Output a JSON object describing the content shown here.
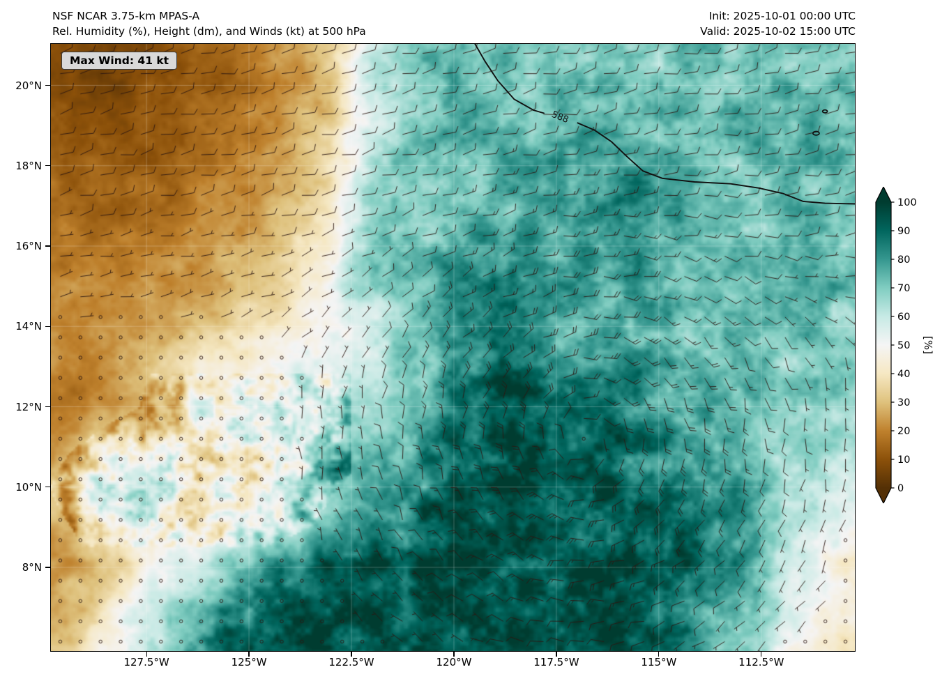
{
  "header": {
    "model": "NSF NCAR 3.75-km MPAS-A",
    "product": "Rel. Humidity (%), Height (dm), and Winds (kt) at 500 hPa",
    "init": "Init: 2025-10-01 00:00 UTC",
    "valid": "Valid: 2025-10-02 15:00 UTC"
  },
  "map": {
    "max_wind_badge": "Max Wind: 41 kt"
  },
  "colorbar": {
    "label": "[%]",
    "ticks": [
      0,
      10,
      20,
      30,
      40,
      50,
      60,
      70,
      80,
      90,
      100
    ]
  },
  "chart_data": {
    "type": "heatmap",
    "title": "NSF NCAR 3.75-km MPAS-A",
    "subtitle": "Rel. Humidity (%), Height (dm), and Winds (kt) at 500 hPa",
    "init_time": "2025-10-01 00:00 UTC",
    "valid_time": "2025-10-02 15:00 UTC",
    "max_wind_kt": 41,
    "grid": true,
    "legend_position": "right-colorbar",
    "colorbar_label": "[%]",
    "lon_range": [
      -129.85,
      -110.2
    ],
    "lat_range": [
      5.9,
      21.05
    ],
    "x_ticks": [
      {
        "lon": -127.5,
        "label": "127.5°W"
      },
      {
        "lon": -125.0,
        "label": "125°W"
      },
      {
        "lon": -122.5,
        "label": "122.5°W"
      },
      {
        "lon": -120.0,
        "label": "120°W"
      },
      {
        "lon": -117.5,
        "label": "117.5°W"
      },
      {
        "lon": -115.0,
        "label": "115°W"
      },
      {
        "lon": -112.5,
        "label": "112.5°W"
      }
    ],
    "y_ticks": [
      {
        "lat": 20,
        "label": "20°N"
      },
      {
        "lat": 18,
        "label": "18°N"
      },
      {
        "lat": 16,
        "label": "16°N"
      },
      {
        "lat": 14,
        "label": "14°N"
      },
      {
        "lat": 12,
        "label": "12°N"
      },
      {
        "lat": 10,
        "label": "10°N"
      },
      {
        "lat": 8,
        "label": "8°N"
      }
    ],
    "colormap": {
      "name": "BrBG",
      "stops": [
        {
          "value": 0,
          "color": "#543005"
        },
        {
          "value": 10,
          "color": "#8c510a"
        },
        {
          "value": 20,
          "color": "#bf812d"
        },
        {
          "value": 30,
          "color": "#dfc27d"
        },
        {
          "value": 40,
          "color": "#f6e8c3"
        },
        {
          "value": 50,
          "color": "#f5f5f5"
        },
        {
          "value": 60,
          "color": "#c7eae5"
        },
        {
          "value": 70,
          "color": "#80cdc1"
        },
        {
          "value": 80,
          "color": "#35978f"
        },
        {
          "value": 90,
          "color": "#01665e"
        },
        {
          "value": 100,
          "color": "#003c30"
        }
      ]
    },
    "rh_grid": {
      "units": "%",
      "lons": [
        -130,
        -129,
        -128,
        -127,
        -126,
        -125,
        -124,
        -123,
        -122,
        -121,
        -120,
        -119,
        -118,
        -117,
        -116,
        -115,
        -114,
        -113,
        -112,
        -111,
        -110
      ],
      "lats": [
        21,
        20,
        19,
        18,
        17,
        16,
        15,
        14,
        13,
        12,
        11,
        10,
        9,
        8,
        7,
        6
      ],
      "values": [
        [
          10,
          8,
          8,
          10,
          14,
          18,
          24,
          32,
          58,
          68,
          72,
          70,
          72,
          74,
          72,
          70,
          72,
          74,
          73,
          72,
          70
        ],
        [
          8,
          7,
          8,
          10,
          13,
          17,
          22,
          30,
          60,
          70,
          73,
          72,
          74,
          75,
          73,
          72,
          73,
          75,
          74,
          72,
          71
        ],
        [
          12,
          10,
          10,
          12,
          15,
          19,
          24,
          33,
          60,
          70,
          72,
          74,
          73,
          76,
          78,
          74,
          72,
          74,
          76,
          73,
          71
        ],
        [
          15,
          13,
          12,
          14,
          17,
          21,
          27,
          37,
          62,
          71,
          72,
          73,
          75,
          78,
          80,
          76,
          73,
          72,
          73,
          75,
          72
        ],
        [
          18,
          16,
          15,
          17,
          20,
          24,
          30,
          43,
          66,
          72,
          74,
          76,
          74,
          76,
          82,
          84,
          76,
          73,
          71,
          73,
          74
        ],
        [
          20,
          18,
          17,
          20,
          23,
          27,
          33,
          46,
          68,
          72,
          75,
          78,
          76,
          78,
          80,
          78,
          75,
          73,
          74,
          76,
          73
        ],
        [
          22,
          20,
          20,
          23,
          27,
          31,
          37,
          50,
          66,
          71,
          77,
          82,
          84,
          78,
          76,
          75,
          73,
          75,
          78,
          74,
          70
        ],
        [
          23,
          21,
          23,
          27,
          31,
          36,
          42,
          50,
          58,
          68,
          80,
          88,
          82,
          76,
          78,
          75,
          72,
          74,
          76,
          72,
          68
        ],
        [
          21,
          19,
          24,
          33,
          43,
          48,
          51,
          54,
          60,
          70,
          82,
          90,
          86,
          80,
          82,
          78,
          74,
          72,
          70,
          72,
          70
        ],
        [
          19,
          17,
          26,
          38,
          48,
          53,
          56,
          58,
          63,
          74,
          86,
          92,
          93,
          88,
          85,
          80,
          76,
          72,
          70,
          68,
          66
        ],
        [
          23,
          32,
          46,
          52,
          50,
          53,
          58,
          63,
          68,
          78,
          88,
          95,
          96,
          93,
          90,
          85,
          80,
          74,
          69,
          64,
          60
        ],
        [
          28,
          42,
          52,
          48,
          46,
          50,
          56,
          66,
          73,
          84,
          92,
          96,
          95,
          94,
          92,
          90,
          84,
          77,
          68,
          60,
          54
        ],
        [
          24,
          33,
          43,
          46,
          50,
          56,
          63,
          73,
          80,
          89,
          95,
          96,
          95,
          92,
          94,
          92,
          87,
          79,
          66,
          54,
          47
        ],
        [
          20,
          28,
          38,
          52,
          63,
          73,
          84,
          91,
          95,
          96,
          97,
          95,
          94,
          95,
          96,
          94,
          89,
          80,
          63,
          49,
          44
        ],
        [
          24,
          33,
          48,
          63,
          78,
          89,
          94,
          96,
          97,
          95,
          94,
          92,
          95,
          96,
          95,
          91,
          84,
          73,
          58,
          46,
          41
        ],
        [
          28,
          38,
          53,
          68,
          84,
          91,
          94,
          94,
          95,
          93,
          92,
          90,
          92,
          94,
          93,
          89,
          79,
          68,
          53,
          44,
          39
        ]
      ]
    },
    "height_contour": {
      "label": "588",
      "units": "dm",
      "label_pos": [
        0.633,
        0.122
      ],
      "label_rotation_deg": 22,
      "segments": [
        [
          [
            0.527,
            0.0
          ],
          [
            0.54,
            0.03
          ],
          [
            0.556,
            0.062
          ],
          [
            0.576,
            0.092
          ],
          [
            0.6,
            0.11
          ],
          [
            0.613,
            0.115
          ]
        ],
        [
          [
            0.655,
            0.131
          ],
          [
            0.676,
            0.143
          ],
          [
            0.697,
            0.162
          ],
          [
            0.716,
            0.186
          ],
          [
            0.736,
            0.21
          ],
          [
            0.76,
            0.222
          ],
          [
            0.8,
            0.228
          ],
          [
            0.845,
            0.231
          ],
          [
            0.88,
            0.238
          ],
          [
            0.91,
            0.247
          ],
          [
            0.935,
            0.26
          ],
          [
            0.962,
            0.263
          ],
          [
            1.0,
            0.264
          ]
        ]
      ],
      "closed_blobs": [
        [
          0.962,
          0.112,
          3.5
        ],
        [
          0.951,
          0.148,
          4.5
        ]
      ]
    },
    "wind": {
      "units": "kt",
      "max_kt": 41,
      "vortex_center": {
        "lon": -116.8,
        "lat": 11.2
      },
      "vortex_max_kt": 20,
      "trade_u_kt": -9,
      "barb_grid": [
        40,
        30
      ]
    }
  }
}
